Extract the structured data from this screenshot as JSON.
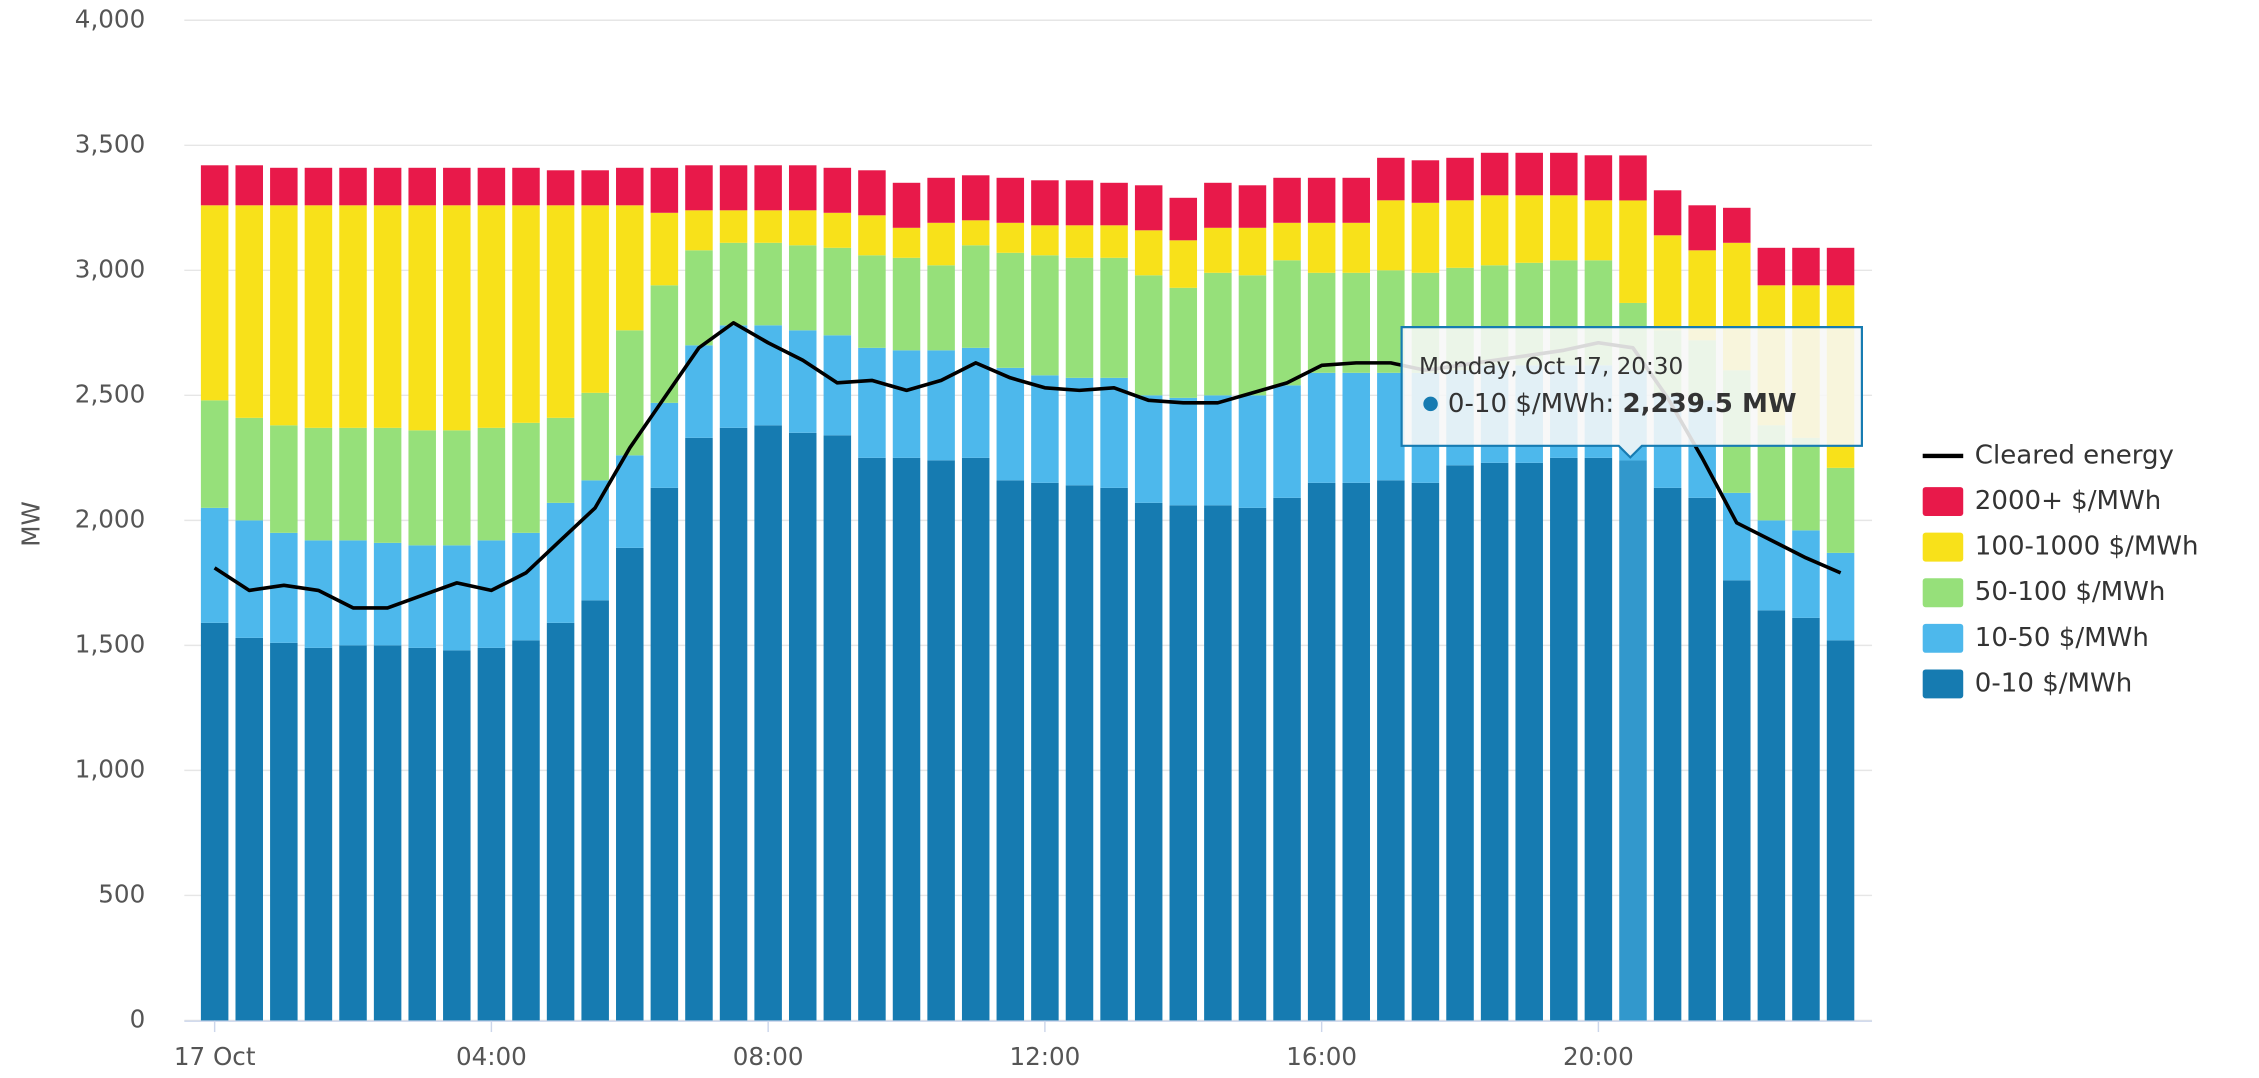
{
  "chart_data": {
    "type": "bar",
    "y_label": "MW",
    "categories": [
      "17 Oct",
      null,
      null,
      null,
      null,
      null,
      null,
      null,
      "04:00",
      null,
      null,
      null,
      null,
      null,
      null,
      null,
      "08:00",
      null,
      null,
      null,
      null,
      null,
      null,
      null,
      "12:00",
      null,
      null,
      null,
      null,
      null,
      null,
      null,
      "16:00",
      null,
      null,
      null,
      null,
      null,
      null,
      null,
      "20:00",
      null,
      null,
      null,
      null,
      null,
      null,
      null
    ],
    "stacked": true,
    "grid": true,
    "legend": "right",
    "ylim": [
      0,
      4000
    ],
    "yticks": [
      0,
      500,
      {
        "value": 1000,
        "label": "1,000"
      },
      {
        "value": 1500,
        "label": "1,500"
      },
      {
        "value": 2000,
        "label": "2,000"
      },
      {
        "value": 2500,
        "label": "2,500"
      },
      {
        "value": 3000,
        "label": "3,000"
      },
      {
        "value": 3500,
        "label": "3,500"
      },
      {
        "value": 4000,
        "label": "4,000"
      }
    ],
    "series": [
      {
        "name": "0-10 $/MWh",
        "color": "#167bb1",
        "values": [
          1590,
          1530,
          1510,
          1490,
          1500,
          1500,
          1490,
          1480,
          1490,
          1520,
          1590,
          1680,
          1890,
          2130,
          2330,
          2370,
          2380,
          2350,
          2340,
          2250,
          2250,
          2240,
          2250,
          2160,
          2150,
          2140,
          2130,
          2070,
          2060,
          2060,
          2050,
          2090,
          2150,
          2150,
          2160,
          2150,
          2220,
          2230,
          2230,
          2250,
          2250,
          2239.5,
          2130,
          2090,
          1760,
          1640,
          1610,
          1520
        ]
      },
      {
        "name": "10-50 $/MWh",
        "color": "#4db8ec",
        "values": [
          460,
          470,
          440,
          430,
          420,
          410,
          410,
          420,
          430,
          430,
          480,
          480,
          370,
          340,
          370,
          410,
          400,
          410,
          400,
          440,
          430,
          440,
          440,
          450,
          430,
          430,
          440,
          430,
          430,
          440,
          450,
          450,
          440,
          440,
          430,
          440,
          380,
          390,
          390,
          370,
          370,
          360,
          370,
          390,
          350,
          360,
          350,
          350
        ]
      },
      {
        "name": "50-100 $/MWh",
        "color": "#96e07a",
        "values": [
          430,
          410,
          430,
          450,
          450,
          460,
          460,
          460,
          450,
          440,
          340,
          350,
          500,
          470,
          380,
          330,
          330,
          340,
          350,
          370,
          370,
          340,
          410,
          460,
          480,
          480,
          480,
          480,
          440,
          490,
          480,
          500,
          400,
          400,
          410,
          400,
          410,
          400,
          410,
          420,
          420,
          270,
          260,
          240,
          490,
          380,
          370,
          340
        ]
      },
      {
        "name": "100-1000 $/MWh",
        "color": "#f8e11a",
        "values": [
          780,
          850,
          880,
          890,
          890,
          890,
          900,
          900,
          890,
          870,
          850,
          750,
          500,
          290,
          160,
          130,
          130,
          140,
          140,
          160,
          120,
          170,
          100,
          120,
          120,
          130,
          130,
          180,
          190,
          180,
          190,
          150,
          200,
          200,
          280,
          280,
          270,
          280,
          270,
          260,
          240,
          410,
          380,
          360,
          510,
          560,
          610,
          730
        ]
      },
      {
        "name": "2000+ $/MWh",
        "color": "#e8194a",
        "values": [
          160,
          160,
          150,
          150,
          150,
          150,
          150,
          150,
          150,
          150,
          140,
          140,
          150,
          180,
          180,
          180,
          180,
          180,
          180,
          180,
          180,
          180,
          180,
          180,
          180,
          180,
          170,
          180,
          170,
          180,
          170,
          180,
          180,
          180,
          170,
          170,
          170,
          170,
          170,
          170,
          180,
          180,
          180,
          180,
          140,
          150,
          150,
          150
        ]
      },
      {
        "name": "Cleared energy",
        "type": "line",
        "color": "#000000",
        "values": [
          1810,
          1720,
          1740,
          1720,
          1650,
          1650,
          1700,
          1750,
          1720,
          1790,
          1920,
          2050,
          2290,
          2490,
          2690,
          2790,
          2710,
          2640,
          2550,
          2560,
          2520,
          2560,
          2630,
          2570,
          2530,
          2520,
          2530,
          2480,
          2470,
          2470,
          2510,
          2550,
          2620,
          2630,
          2630,
          2600,
          2620,
          2640,
          2660,
          2680,
          2710,
          2690,
          2490,
          2250,
          1990,
          1920,
          1850,
          1790
        ]
      }
    ],
    "tooltip": {
      "title": "Monday, Oct 17, 20:30",
      "label": "0-10 $/MWh:",
      "value_label": "2,239.5 MW"
    }
  }
}
